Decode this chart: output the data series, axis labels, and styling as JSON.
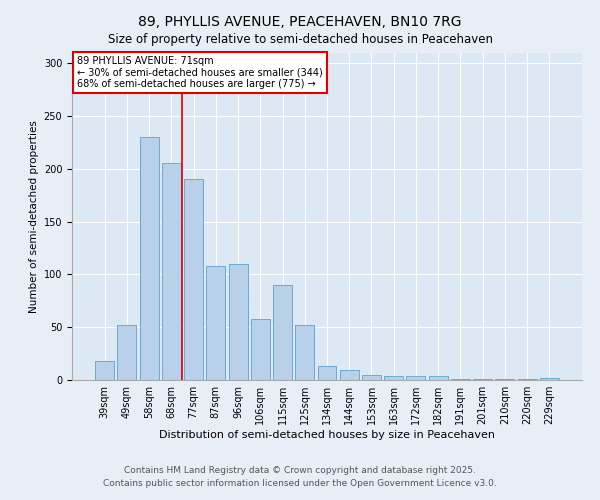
{
  "title": "89, PHYLLIS AVENUE, PEACEHAVEN, BN10 7RG",
  "subtitle": "Size of property relative to semi-detached houses in Peacehaven",
  "xlabel": "Distribution of semi-detached houses by size in Peacehaven",
  "ylabel": "Number of semi-detached properties",
  "categories": [
    "39sqm",
    "49sqm",
    "58sqm",
    "68sqm",
    "77sqm",
    "87sqm",
    "96sqm",
    "106sqm",
    "115sqm",
    "125sqm",
    "134sqm",
    "144sqm",
    "153sqm",
    "163sqm",
    "172sqm",
    "182sqm",
    "191sqm",
    "201sqm",
    "210sqm",
    "220sqm",
    "229sqm"
  ],
  "values": [
    18,
    52,
    230,
    205,
    190,
    108,
    110,
    58,
    90,
    52,
    13,
    9,
    5,
    4,
    4,
    4,
    1,
    1,
    1,
    1,
    2
  ],
  "bar_color": "#b8d0ea",
  "bar_edge_color": "#6aaad4",
  "property_line_x": 3.5,
  "annotation_title": "89 PHYLLIS AVENUE: 71sqm",
  "annotation_line1": "← 30% of semi-detached houses are smaller (344)",
  "annotation_line2": "68% of semi-detached houses are larger (775) →",
  "annotation_box_color": "#ffffff",
  "annotation_box_edge": "#dd0000",
  "property_line_color": "#dd0000",
  "ylim": [
    0,
    310
  ],
  "yticks": [
    0,
    50,
    100,
    150,
    200,
    250,
    300
  ],
  "background_color": "#e8eef5",
  "plot_bg_color": "#dce8f4",
  "footer1": "Contains HM Land Registry data © Crown copyright and database right 2025.",
  "footer2": "Contains public sector information licensed under the Open Government Licence v3.0.",
  "title_fontsize": 10,
  "subtitle_fontsize": 8.5,
  "xlabel_fontsize": 8,
  "ylabel_fontsize": 7.5,
  "tick_fontsize": 7,
  "footer_fontsize": 6.5,
  "annot_fontsize": 7
}
